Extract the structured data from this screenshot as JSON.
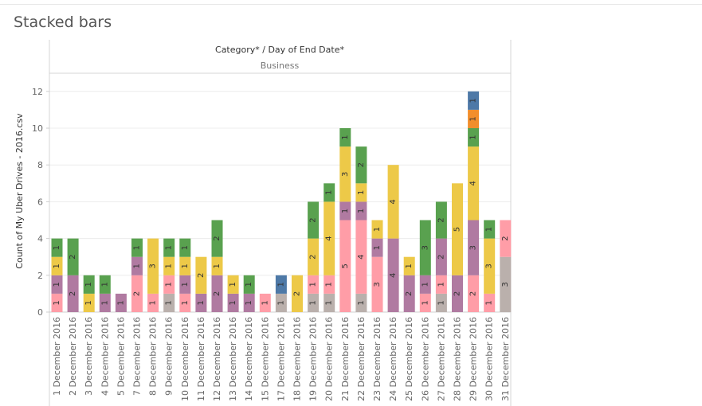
{
  "page_title": "Stacked bars",
  "chart_data": {
    "type": "bar",
    "stacked": true,
    "header": "Category* / Day of End Date*",
    "subheader": "Business",
    "ylabel": "Count of My Uber Drives - 2016.csv",
    "ylim": [
      0,
      12.5
    ],
    "yticks": [
      0,
      2,
      4,
      6,
      8,
      10,
      12
    ],
    "grid": true,
    "colors": {
      "grey": "#bab0ac",
      "pink": "#ff9da7",
      "purple": "#b07aa1",
      "yellow": "#edc948",
      "green": "#59a14f",
      "blue": "#4e79a7",
      "orange": "#f28e2b"
    },
    "categories": [
      "1 December 2016",
      "2 December 2016",
      "3 December 2016",
      "4 December 2016",
      "5 December 2016",
      "7 December 2016",
      "8 December 2016",
      "9 December 2016",
      "10 December 2016",
      "11 December 2016",
      "12 December 2016",
      "13 December 2016",
      "14 December 2016",
      "15 December 2016",
      "17 December 2016",
      "18 December 2016",
      "19 December 2016",
      "20 December 2016",
      "21 December 2016",
      "22 December 2016",
      "23 December 2016",
      "24 December 2016",
      "25 December 2016",
      "26 December 2016",
      "27 December 2016",
      "28 December 2016",
      "29 December 2016",
      "30 December 2016",
      "31 December 2016"
    ],
    "stacks": [
      [
        [
          "pink",
          1
        ],
        [
          "purple",
          1
        ],
        [
          "yellow",
          1
        ],
        [
          "green",
          1
        ]
      ],
      [
        [
          "purple",
          2
        ],
        [
          "green",
          2
        ]
      ],
      [
        [
          "yellow",
          1
        ],
        [
          "green",
          1
        ]
      ],
      [
        [
          "purple",
          1
        ],
        [
          "green",
          1
        ]
      ],
      [
        [
          "purple",
          1
        ]
      ],
      [
        [
          "pink",
          2
        ],
        [
          "purple",
          1
        ],
        [
          "green",
          1
        ]
      ],
      [
        [
          "pink",
          1
        ],
        [
          "yellow",
          3
        ]
      ],
      [
        [
          "grey",
          1
        ],
        [
          "pink",
          1
        ],
        [
          "yellow",
          1
        ],
        [
          "green",
          1
        ]
      ],
      [
        [
          "pink",
          1
        ],
        [
          "purple",
          1
        ],
        [
          "yellow",
          1
        ],
        [
          "green",
          1
        ]
      ],
      [
        [
          "purple",
          1
        ],
        [
          "yellow",
          2
        ]
      ],
      [
        [
          "purple",
          2
        ],
        [
          "yellow",
          1
        ],
        [
          "green",
          2
        ]
      ],
      [
        [
          "purple",
          1
        ],
        [
          "yellow",
          1
        ]
      ],
      [
        [
          "purple",
          1
        ],
        [
          "green",
          1
        ]
      ],
      [
        [
          "pink",
          1
        ]
      ],
      [
        [
          "grey",
          1
        ],
        [
          "blue",
          1
        ]
      ],
      [
        [
          "yellow",
          2
        ]
      ],
      [
        [
          "grey",
          1
        ],
        [
          "pink",
          1
        ],
        [
          "yellow",
          2
        ],
        [
          "green",
          2
        ]
      ],
      [
        [
          "grey",
          1
        ],
        [
          "pink",
          1
        ],
        [
          "yellow",
          4
        ],
        [
          "green",
          1
        ]
      ],
      [
        [
          "pink",
          5
        ],
        [
          "purple",
          1
        ],
        [
          "yellow",
          3
        ],
        [
          "green",
          1
        ]
      ],
      [
        [
          "grey",
          1
        ],
        [
          "pink",
          4
        ],
        [
          "purple",
          1
        ],
        [
          "yellow",
          1
        ],
        [
          "green",
          2
        ]
      ],
      [
        [
          "pink",
          3
        ],
        [
          "purple",
          1
        ],
        [
          "yellow",
          1
        ]
      ],
      [
        [
          "purple",
          4
        ],
        [
          "yellow",
          4
        ]
      ],
      [
        [
          "purple",
          2
        ],
        [
          "yellow",
          1
        ]
      ],
      [
        [
          "pink",
          1
        ],
        [
          "purple",
          1
        ],
        [
          "green",
          3
        ]
      ],
      [
        [
          "grey",
          1
        ],
        [
          "pink",
          1
        ],
        [
          "purple",
          2
        ],
        [
          "green",
          2
        ]
      ],
      [
        [
          "purple",
          2
        ],
        [
          "yellow",
          5
        ]
      ],
      [
        [
          "pink",
          2
        ],
        [
          "purple",
          3
        ],
        [
          "yellow",
          4
        ],
        [
          "green",
          1
        ],
        [
          "orange",
          1
        ],
        [
          "blue",
          1
        ]
      ],
      [
        [
          "pink",
          1
        ],
        [
          "yellow",
          3
        ],
        [
          "green",
          1
        ]
      ],
      [
        [
          "grey",
          3
        ],
        [
          "pink",
          2
        ]
      ]
    ]
  }
}
